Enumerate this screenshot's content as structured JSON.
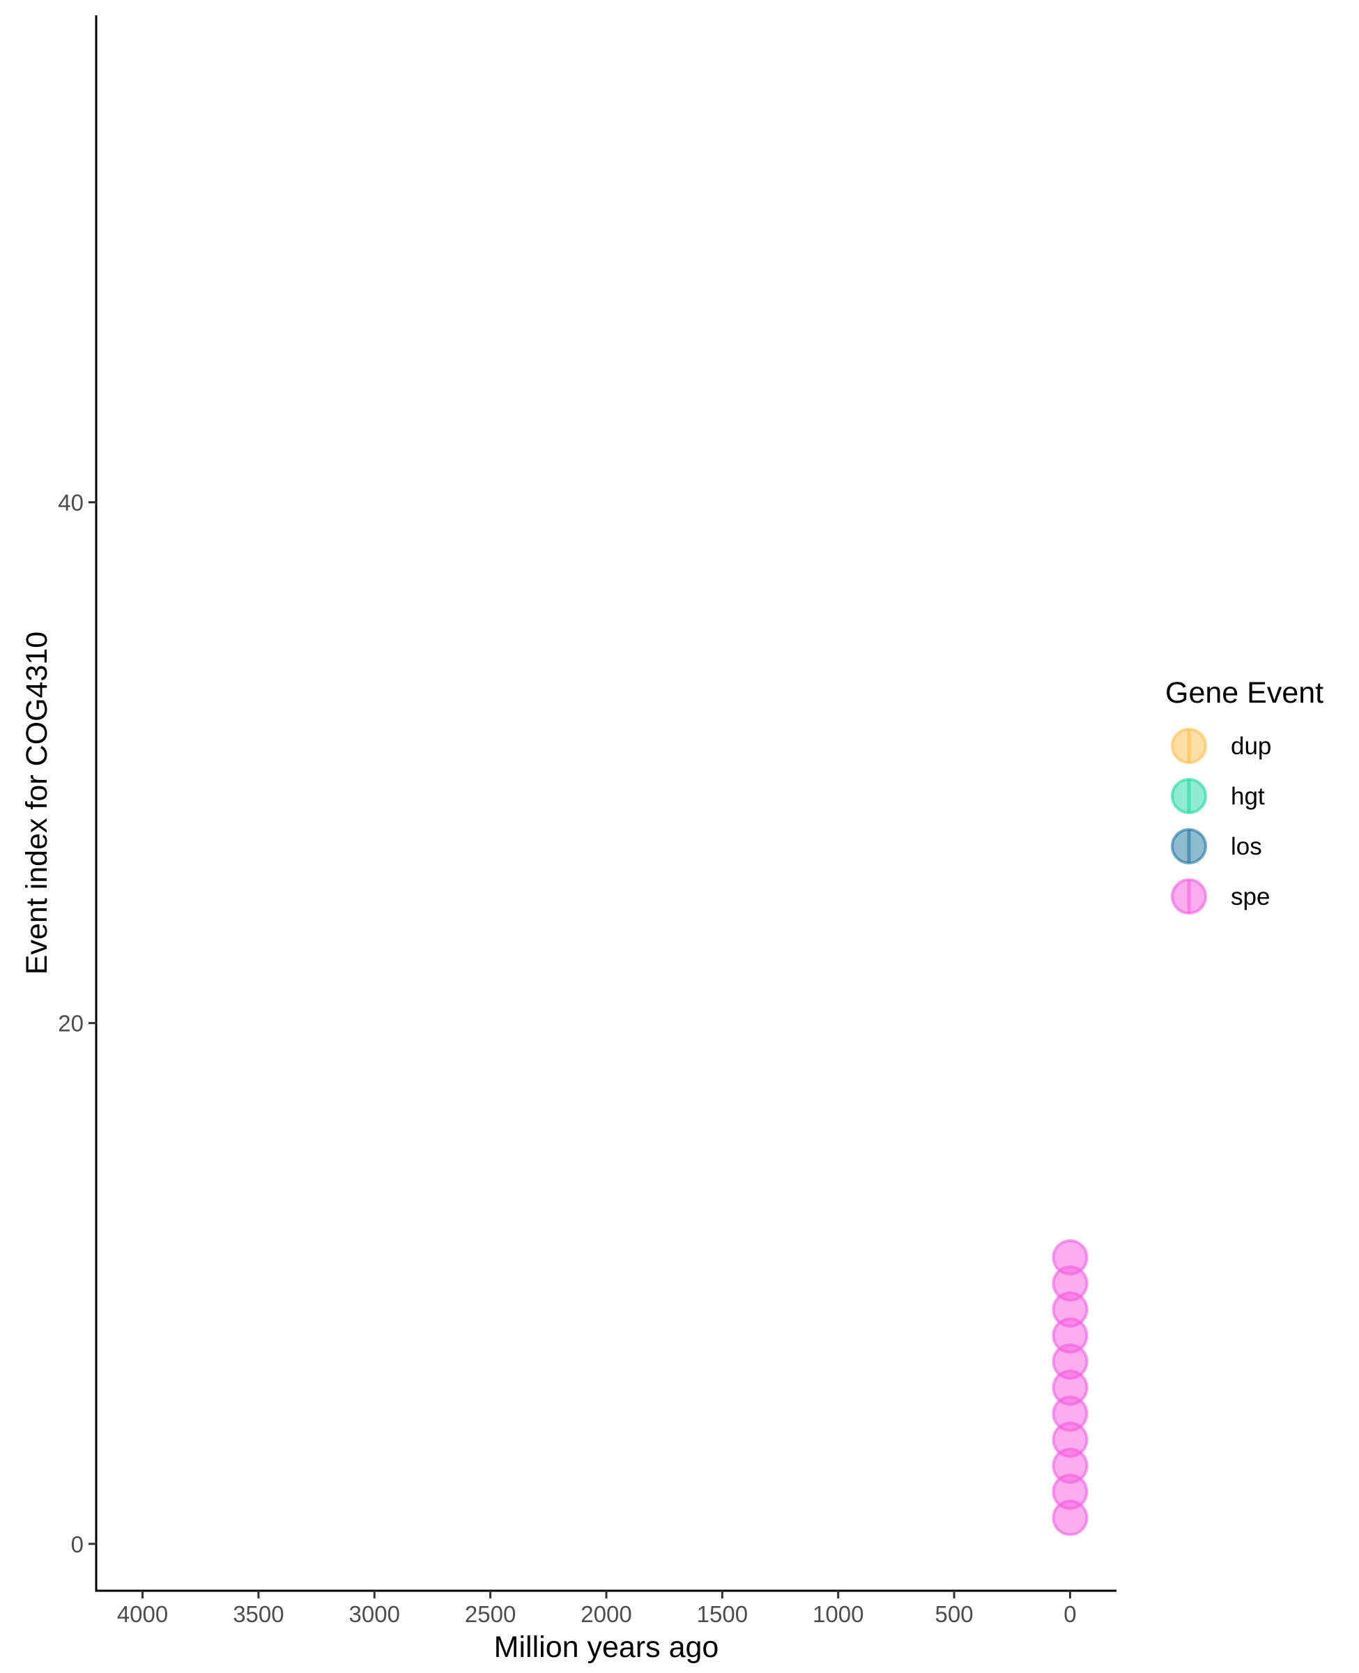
{
  "chart_data": {
    "type": "scatter",
    "xlabel": "Million years ago",
    "ylabel": "Event index for COG4310",
    "xlim": [
      4200,
      -200
    ],
    "x_reversed": true,
    "ylim": [
      -1.8,
      58.7
    ],
    "x_ticks": [
      4000,
      3500,
      3000,
      2500,
      2000,
      1500,
      1000,
      500,
      0
    ],
    "x_tick_labels": [
      "4000",
      "3500",
      "3000",
      "2500",
      "2000",
      "1500",
      "1000",
      "500",
      "0"
    ],
    "y_ticks": [
      0,
      20,
      40
    ],
    "y_tick_labels": [
      "0",
      "20",
      "40"
    ],
    "grid": false,
    "legend": {
      "title": "Gene Event",
      "placement": "right",
      "entries": [
        {
          "label": "dup",
          "color": "#FFC04D"
        },
        {
          "label": "hgt",
          "color": "#1FD8A4"
        },
        {
          "label": "los",
          "color": "#1F78A4"
        },
        {
          "label": "spe",
          "color": "#F95BE0"
        }
      ]
    },
    "series": [
      {
        "name": "spe",
        "color": "#F95BE0",
        "points": [
          {
            "x": 0,
            "y": 1
          },
          {
            "x": 0,
            "y": 2
          },
          {
            "x": 0,
            "y": 3
          },
          {
            "x": 0,
            "y": 4
          },
          {
            "x": 0,
            "y": 5
          },
          {
            "x": 0,
            "y": 6
          },
          {
            "x": 0,
            "y": 7
          },
          {
            "x": 0,
            "y": 8
          },
          {
            "x": 0,
            "y": 9
          },
          {
            "x": 0,
            "y": 10
          },
          {
            "x": 0,
            "y": 11
          }
        ]
      }
    ]
  }
}
